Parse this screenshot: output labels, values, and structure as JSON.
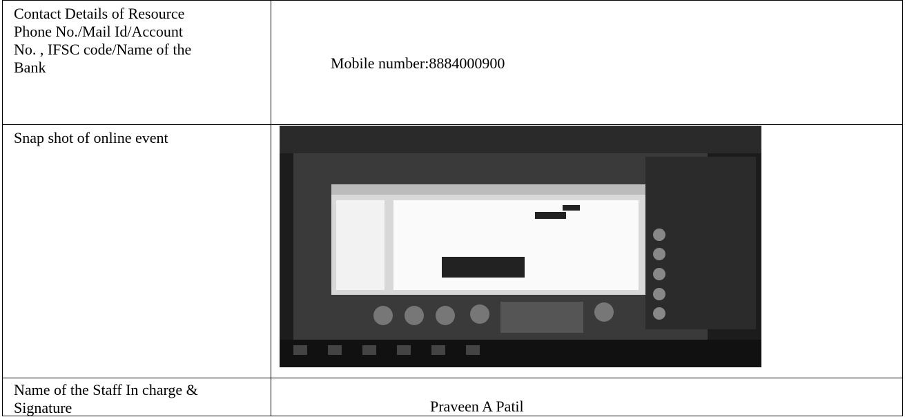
{
  "table": {
    "rows": [
      {
        "label": [
          "Contact Details of Resource",
          "Phone No./Mail Id/Account",
          "No. , IFSC code/Name of the",
          "Bank"
        ],
        "value": "Mobile number:8884000900"
      },
      {
        "label": [
          "Snap shot of online event"
        ]
      },
      {
        "label": [
          "Name of the Staff In charge &",
          "Signature"
        ],
        "value": "Praveen A Patil"
      }
    ]
  }
}
